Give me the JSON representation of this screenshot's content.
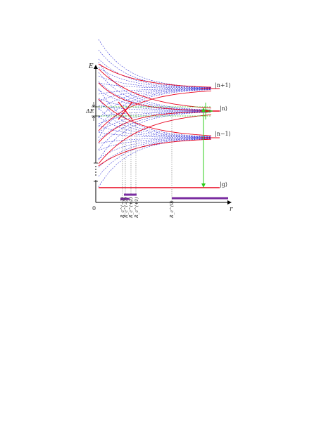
{
  "axes": {
    "y_label": "E",
    "x_label": "r",
    "origin_label": "0",
    "delta_e_label": "ΔE"
  },
  "levels": {
    "upper": "|n+1⟩",
    "middle": "|n⟩",
    "lower": "|n−1⟩",
    "ground": "|g⟩"
  },
  "r_ticks": [
    {
      "label": "R_c^(−1)"
    },
    {
      "label": "R_c^(−2)"
    },
    {
      "label": "R_c^(+2)"
    },
    {
      "label": "R_c^(+1)"
    },
    {
      "label": "R_c^(0)"
    }
  ],
  "colors": {
    "red": "#e8001c",
    "blue": "#2a2ad6",
    "green": "#2ecc1a",
    "purple": "#7a2ca0",
    "grey": "#777777",
    "black": "#000000"
  }
}
